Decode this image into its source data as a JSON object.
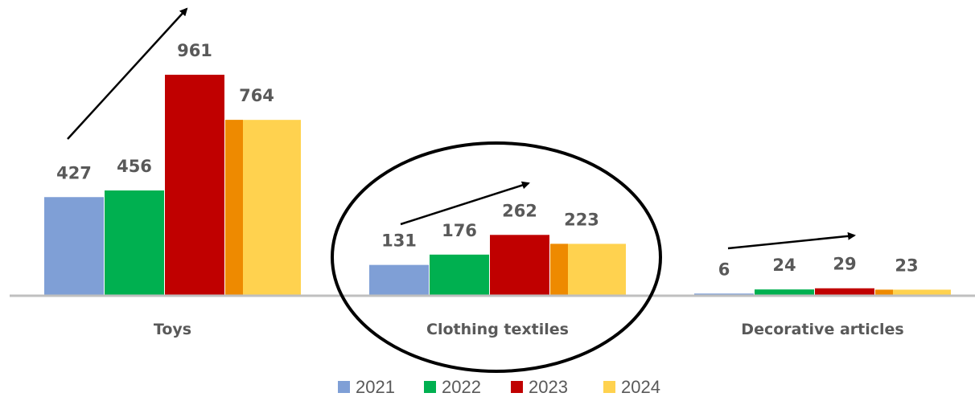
{
  "chart_data": {
    "type": "bar",
    "categories": [
      "Toys",
      "Clothing textiles",
      "Decorative articles"
    ],
    "series": [
      {
        "name": "2021",
        "color": "#7F9FD6",
        "values": [
          427,
          131,
          6
        ]
      },
      {
        "name": "2022",
        "color": "#00B050",
        "values": [
          456,
          176,
          24
        ]
      },
      {
        "name": "2023",
        "color": "#C00000",
        "values": [
          961,
          262,
          29
        ]
      },
      {
        "name": "2024",
        "color": "#FFD24F",
        "values": [
          764,
          223,
          23
        ]
      }
    ],
    "overlap_color": "#EE8A00",
    "legend_position": "bottom",
    "grid": false,
    "ylim": [
      0,
      1060
    ],
    "annotations": [
      {
        "type": "arrow",
        "category": "Toys",
        "description": "upward trend arrow"
      },
      {
        "type": "arrow",
        "category": "Clothing textiles",
        "description": "upward trend arrow"
      },
      {
        "type": "arrow",
        "category": "Decorative articles",
        "description": "upward trend arrow"
      },
      {
        "type": "ellipse",
        "category": "Clothing textiles",
        "description": "highlight circle"
      }
    ]
  }
}
